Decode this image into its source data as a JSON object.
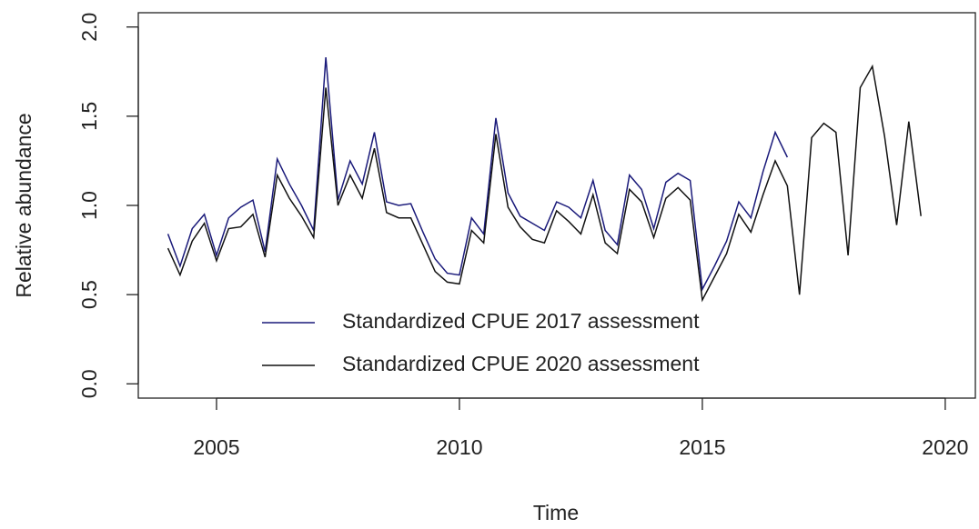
{
  "chart_data": {
    "type": "line",
    "x_label": "Time",
    "y_label": "Relative abundance",
    "xlim": [
      2003.39,
      2020.62
    ],
    "ylim": [
      -0.08,
      2.08
    ],
    "xticks": [
      2005,
      2010,
      2015,
      2020
    ],
    "yticks": [
      {
        "value": 0,
        "label": "0.0"
      },
      {
        "value": 0.5,
        "label": "0.5"
      },
      {
        "value": 1,
        "label": "1.0"
      },
      {
        "value": 1.5,
        "label": "1.5"
      },
      {
        "value": 2,
        "label": "2.0"
      }
    ],
    "legend": "bottom",
    "x": [
      2004,
      2004.25,
      2004.5,
      2004.75,
      2005,
      2005.25,
      2005.5,
      2005.75,
      2006,
      2006.25,
      2006.5,
      2006.75,
      2007,
      2007.25,
      2007.5,
      2007.75,
      2008,
      2008.25,
      2008.5,
      2008.75,
      2009,
      2009.25,
      2009.5,
      2009.75,
      2010,
      2010.25,
      2010.5,
      2010.75,
      2011,
      2011.25,
      2011.5,
      2011.75,
      2012,
      2012.25,
      2012.5,
      2012.75,
      2013,
      2013.25,
      2013.5,
      2013.75,
      2014,
      2014.25,
      2014.5,
      2014.75,
      2015,
      2015.25,
      2015.5,
      2015.75,
      2016,
      2016.25,
      2016.5,
      2016.75,
      2017,
      2017.25,
      2017.5,
      2017.75,
      2018,
      2018.25,
      2018.5,
      2018.75,
      2019,
      2019.25,
      2019.5
    ],
    "series": [
      {
        "name": "Standardized CPUE 2017 assessment",
        "color": "#1a1a7a",
        "values": [
          0.84,
          0.66,
          0.87,
          0.95,
          0.72,
          0.93,
          0.99,
          1.03,
          0.74,
          1.26,
          1.12,
          1.0,
          0.86,
          1.83,
          1.03,
          1.25,
          1.12,
          1.41,
          1.02,
          1.0,
          1.01,
          0.85,
          0.7,
          0.62,
          0.61,
          0.93,
          0.84,
          1.49,
          1.07,
          0.94,
          0.9,
          0.86,
          1.02,
          0.99,
          0.93,
          1.14,
          0.86,
          0.78,
          1.17,
          1.09,
          0.87,
          1.13,
          1.18,
          1.14,
          0.53,
          0.66,
          0.8,
          1.02,
          0.93,
          1.19,
          1.41,
          1.27,
          null,
          null,
          null,
          null,
          null,
          null,
          null,
          null,
          null,
          null,
          null
        ]
      },
      {
        "name": "Standardized CPUE 2020 assessment",
        "color": "#111111",
        "values": [
          0.76,
          0.61,
          0.8,
          0.9,
          0.69,
          0.87,
          0.88,
          0.95,
          0.71,
          1.17,
          1.04,
          0.94,
          0.82,
          1.66,
          1.0,
          1.17,
          1.04,
          1.32,
          0.96,
          0.93,
          0.93,
          0.78,
          0.63,
          0.57,
          0.56,
          0.86,
          0.79,
          1.4,
          0.99,
          0.88,
          0.81,
          0.79,
          0.97,
          0.91,
          0.84,
          1.06,
          0.79,
          0.73,
          1.09,
          1.02,
          0.82,
          1.04,
          1.1,
          1.03,
          0.47,
          0.6,
          0.73,
          0.95,
          0.85,
          1.06,
          1.25,
          1.11,
          0.5,
          1.38,
          1.46,
          1.41,
          0.72,
          1.66,
          1.78,
          1.39,
          0.89,
          1.47,
          0.94
        ]
      }
    ]
  }
}
